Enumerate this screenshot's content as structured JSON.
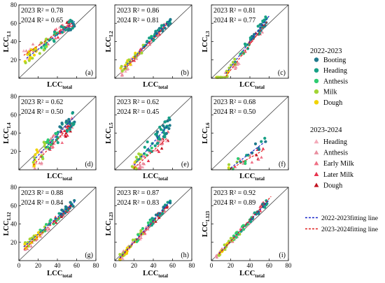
{
  "colors": {
    "booting": "#1f7a8c",
    "heading2022": "#16a085",
    "anthesis2022": "#2ecc71",
    "milk": "#a3d435",
    "dough2022": "#f1d400",
    "heading2023": "#f4aab9",
    "anthesis2023": "#e98fa0",
    "earlymilk": "#ef6f84",
    "latermilk": "#e8334d",
    "dough2023": "#c1121f",
    "fit2022": "#1a27c9",
    "fit2023": "#e02020",
    "line11": "#444444"
  },
  "legend": {
    "group1_title": "2022-2023",
    "group1_items": [
      {
        "label": "Booting",
        "color": "#1f7a8c",
        "marker": "circle"
      },
      {
        "label": "Heading",
        "color": "#16a085",
        "marker": "circle"
      },
      {
        "label": "Anthesis",
        "color": "#2ecc71",
        "marker": "circle"
      },
      {
        "label": "Milk",
        "color": "#a3d435",
        "marker": "circle"
      },
      {
        "label": "Dough",
        "color": "#f1d400",
        "marker": "circle"
      }
    ],
    "group2_title": "2023-2024",
    "group2_items": [
      {
        "label": "Heading",
        "color": "#f4aab9",
        "marker": "triangle"
      },
      {
        "label": "Anthesis",
        "color": "#e98fa0",
        "marker": "triangle"
      },
      {
        "label": "Early Milk",
        "color": "#ef6f84",
        "marker": "triangle"
      },
      {
        "label": "Later Milk",
        "color": "#e8334d",
        "marker": "triangle"
      },
      {
        "label": "Dough",
        "color": "#c1121f",
        "marker": "triangle"
      }
    ],
    "fit_items": [
      {
        "label": "2022-2023fitting line",
        "color": "#1a27c9"
      },
      {
        "label": "2023-2024fitting line",
        "color": "#e02020"
      }
    ]
  },
  "chart_data": [
    {
      "type": "scatter",
      "panel": "(a)",
      "ylabel_main": "LCC",
      "ylabel_sub": "L1",
      "xlabel_main": "LCC",
      "xlabel_sub": "total",
      "r2_2023": "2023 R² = 0.78",
      "r2_2024": "2024 R² = 0.65",
      "xlim": [
        0,
        80
      ],
      "ylim": [
        0,
        80
      ],
      "xticks": [],
      "yticks": [
        "20",
        "40",
        "60",
        "80"
      ],
      "fit_2022": [
        [
          8,
          22
        ],
        [
          58,
          62
        ]
      ],
      "fit_2023": [
        [
          5,
          25
        ],
        [
          55,
          60
        ]
      ]
    },
    {
      "type": "scatter",
      "panel": "(b)",
      "ylabel_main": "LCC",
      "ylabel_sub": "L2",
      "xlabel_main": "LCC",
      "xlabel_sub": "total",
      "r2_2023": "2023 R² = 0.86",
      "r2_2024": "2024 R² = 0.81",
      "xlim": [
        0,
        80
      ],
      "ylim": [
        0,
        80
      ],
      "xticks": [],
      "yticks": [],
      "fit_2022": [
        [
          10,
          12
        ],
        [
          58,
          64
        ]
      ],
      "fit_2023": [
        [
          10,
          10
        ],
        [
          55,
          60
        ]
      ]
    },
    {
      "type": "scatter",
      "panel": "(c)",
      "ylabel_main": "LCC",
      "ylabel_sub": "L3",
      "xlabel_main": "LCC",
      "xlabel_sub": "total",
      "r2_2023": "2023 R² = 0.81",
      "r2_2024": "2024 R² = 0.77",
      "xlim": [
        0,
        80
      ],
      "ylim": [
        0,
        80
      ],
      "xticks": [],
      "yticks": [],
      "fit_2022": [
        [
          15,
          5
        ],
        [
          60,
          68
        ]
      ],
      "fit_2023": [
        [
          15,
          2
        ],
        [
          58,
          62
        ]
      ]
    },
    {
      "type": "scatter",
      "panel": "(d)",
      "ylabel_main": "LCC",
      "ylabel_sub": "L4",
      "xlabel_main": "LCC",
      "xlabel_sub": "total",
      "r2_2023": "2023 R² = 0.62",
      "r2_2024": "2024 R² = 0.50",
      "xlim": [
        0,
        80
      ],
      "ylim": [
        0,
        80
      ],
      "xticks": [],
      "yticks": [
        "20",
        "40",
        "60",
        "80"
      ],
      "fit_2022": [
        [
          15,
          10
        ],
        [
          58,
          58
        ]
      ],
      "fit_2023": [
        [
          15,
          5
        ],
        [
          55,
          50
        ]
      ]
    },
    {
      "type": "scatter",
      "panel": "(e)",
      "ylabel_main": "LCC",
      "ylabel_sub": "L5",
      "xlabel_main": "LCC",
      "xlabel_sub": "total",
      "r2_2023": "2023 R² = 0.62",
      "r2_2024": "2024 R² = 0.45",
      "xlim": [
        0,
        80
      ],
      "ylim": [
        0,
        80
      ],
      "xticks": [],
      "yticks": [],
      "fit_2022": [
        [
          20,
          5
        ],
        [
          55,
          48
        ]
      ],
      "fit_2023": [
        [
          20,
          2
        ],
        [
          55,
          35
        ]
      ]
    },
    {
      "type": "scatter",
      "panel": "(f)",
      "ylabel_main": "LCC",
      "ylabel_sub": "L6",
      "xlabel_main": "LCC",
      "xlabel_sub": "total",
      "r2_2023": "2023 R² = 0.68",
      "r2_2024": "2024 R² = 0.50",
      "xlim": [
        0,
        80
      ],
      "ylim": [
        0,
        80
      ],
      "xticks": [],
      "yticks": [],
      "fit_2022": [
        [
          20,
          2
        ],
        [
          55,
          30
        ]
      ],
      "fit_2023": [
        [
          20,
          1
        ],
        [
          55,
          22
        ]
      ]
    },
    {
      "type": "scatter",
      "panel": "(g)",
      "ylabel_main": "LCC",
      "ylabel_sub": "L12",
      "xlabel_main": "LCC",
      "xlabel_sub": "total",
      "r2_2023": "2023 R² = 0.88",
      "r2_2024": "2024 R² = 0.84",
      "xlim": [
        0,
        80
      ],
      "ylim": [
        0,
        80
      ],
      "xticks": [
        "0",
        "20",
        "40",
        "60",
        "80"
      ],
      "yticks": [
        "20",
        "40",
        "60",
        "80"
      ],
      "fit_2022": [
        [
          5,
          15
        ],
        [
          58,
          64
        ]
      ],
      "fit_2023": [
        [
          5,
          12
        ],
        [
          55,
          60
        ]
      ]
    },
    {
      "type": "scatter",
      "panel": "(h)",
      "ylabel_main": "LCC",
      "ylabel_sub": "L23",
      "xlabel_main": "LCC",
      "xlabel_sub": "total",
      "r2_2023": "2023 R² = 0.87",
      "r2_2024": "2024 R² = 0.83",
      "xlim": [
        0,
        80
      ],
      "ylim": [
        0,
        80
      ],
      "xticks": [
        "0",
        "20",
        "40",
        "60",
        "80"
      ],
      "yticks": [],
      "fit_2022": [
        [
          5,
          3
        ],
        [
          58,
          65
        ]
      ],
      "fit_2023": [
        [
          5,
          2
        ],
        [
          55,
          60
        ]
      ]
    },
    {
      "type": "scatter",
      "panel": "(i)",
      "ylabel_main": "LCC",
      "ylabel_sub": "L123",
      "xlabel_main": "LCC",
      "xlabel_sub": "total",
      "r2_2023": "2023 R² = 0.92",
      "r2_2024": "2024 R² = 0.89",
      "xlim": [
        0,
        80
      ],
      "ylim": [
        0,
        80
      ],
      "xticks": [
        "0",
        "20",
        "40",
        "60",
        "80"
      ],
      "yticks": [],
      "fit_2022": [
        [
          8,
          8
        ],
        [
          60,
          66
        ]
      ],
      "fit_2023": [
        [
          8,
          7
        ],
        [
          62,
          70
        ]
      ]
    }
  ]
}
